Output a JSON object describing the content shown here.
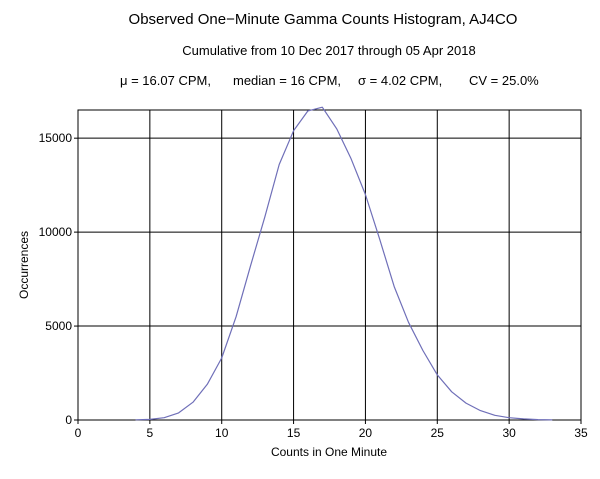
{
  "chart_data": {
    "type": "line",
    "title": "Observed One−Minute Gamma Counts Histogram, AJ4CO",
    "subtitle": "Cumulative from 10 Dec 2017 through 05 Apr 2018",
    "stats": {
      "mean": "μ = 16.07 CPM,",
      "median": "median = 16 CPM,",
      "sigma": "σ = 4.02 CPM,",
      "cv": "CV = 25.0%"
    },
    "xlabel": "Counts in One Minute",
    "ylabel": "Occurrences",
    "xlim": [
      0,
      35
    ],
    "ylim": [
      0,
      16500
    ],
    "xticks": [
      0,
      5,
      10,
      15,
      20,
      25,
      30,
      35
    ],
    "xtick_labels": [
      "0",
      "5",
      "10",
      "15",
      "20",
      "25",
      "30",
      "35"
    ],
    "yticks": [
      0,
      5000,
      10000,
      15000
    ],
    "ytick_labels": [
      "0",
      "5000",
      "10000",
      "15000"
    ],
    "grid": true,
    "series_color": "#6f6fb8",
    "series": [
      {
        "x": [
          4,
          5,
          6,
          7,
          8,
          9,
          10,
          11,
          12,
          13,
          14,
          15,
          16,
          17,
          18,
          19,
          20,
          21,
          22,
          23,
          24,
          25,
          26,
          27,
          28,
          29,
          30,
          31,
          32,
          33
        ],
        "values": [
          10,
          30,
          120,
          380,
          950,
          1900,
          3300,
          5500,
          8200,
          10800,
          13600,
          15400,
          16450,
          16650,
          15500,
          13900,
          12000,
          9600,
          7100,
          5200,
          3700,
          2400,
          1500,
          900,
          500,
          250,
          120,
          60,
          20,
          5
        ]
      }
    ]
  }
}
